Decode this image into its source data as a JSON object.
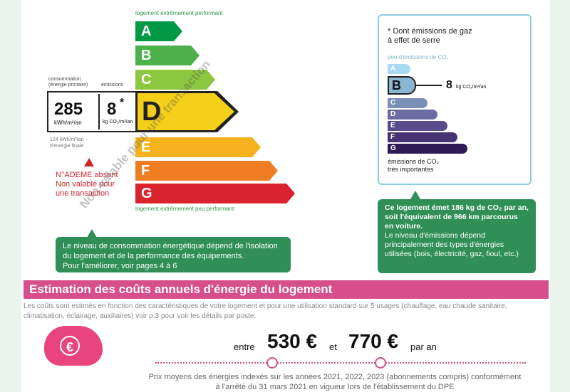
{
  "energy": {
    "top_label": "logement extrêmement performant",
    "bottom_label": "logement extrêmement peu performant",
    "bars": [
      {
        "letter": "A",
        "color": "#009a47"
      },
      {
        "letter": "B",
        "color": "#4cb14a"
      },
      {
        "letter": "C",
        "color": "#8dc63f"
      },
      {
        "letter": "D",
        "color": "#f4d01b"
      },
      {
        "letter": "E",
        "color": "#f6b21c"
      },
      {
        "letter": "F",
        "color": "#ef7d22"
      },
      {
        "letter": "G",
        "color": "#d9232e"
      }
    ],
    "current_class": "D",
    "consumption_header": "consommation\n(énergie primaire)",
    "emissions_header": "émissions",
    "consumption_value": "285",
    "consumption_unit": "kWh/m²/an",
    "emissions_value": "8",
    "emissions_star": "*",
    "emissions_unit": "kg CO₂/m²/an",
    "final_energy": "124 kWh/m²/an\nd'énergie finale",
    "ademe_absent": "N°ADEME absent\nNon valable pour\nune transaction",
    "watermark": "Non valable pour une transaction",
    "info_box": "Le niveau de consommation énergétique dépend de l'isolation du logement et de la performance des équipements.\nPour l'améliorer, voir pages 4 à 6"
  },
  "ges": {
    "title": "* Dont émissions de gaz\nà effet de serre",
    "top_label": "peu d'émissions de CO₂",
    "bottom_label": "émissions de CO₂\ntrès importantes",
    "bars": [
      {
        "letter": "A",
        "color": "#a8dbf3"
      },
      {
        "letter": "B",
        "color": "#8ab5d3"
      },
      {
        "letter": "C",
        "color": "#7b8fb8"
      },
      {
        "letter": "D",
        "color": "#6a6ca2"
      },
      {
        "letter": "E",
        "color": "#584c8d"
      },
      {
        "letter": "F",
        "color": "#453374"
      },
      {
        "letter": "G",
        "color": "#2d1b55"
      }
    ],
    "current_class": "B",
    "value": "8",
    "unit": "kg CO₂/m²/an",
    "info_bold": "Ce logement émet 186 kg de CO₂ par an, soit l'équivalent de 966 km parcourus en voiture.",
    "info_normal": "Le niveau d'émissions dépend principalement des types d'énergies utilisées (bois, électricité, gaz, fioul, etc.)"
  },
  "costs": {
    "title": "Estimation des coûts annuels d'énergie du logement",
    "description": "Les coûts sont estimés en fonction des caractéristiques de votre logement et pour une utilisation standard sur 5 usages (chauffage, eau chaude sanitaire, climatisation, éclairage, auxiliaires) voir p.3 pour voir les détails par poste.",
    "word_between": "entre",
    "low": "530 €",
    "word_and": "et",
    "high": "770 €",
    "word_per": "par an",
    "footnote": "Prix moyens des énergies indexés sur les années 2021, 2022, 2023 (abonnements compris) conformément\nà l'arrêté du 31 mars 2021 en vigueur lors de l'établissement du DPE",
    "piggy_symbol": "€"
  }
}
